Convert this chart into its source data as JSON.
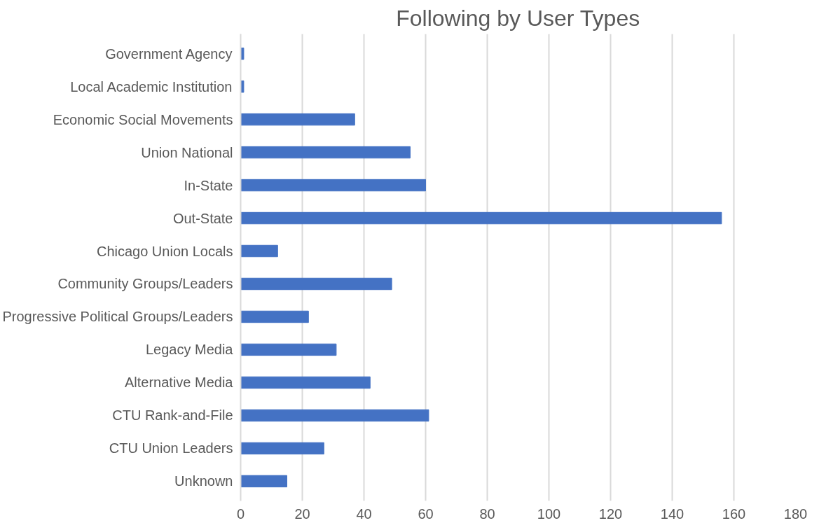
{
  "chart_data": {
    "type": "bar",
    "orientation": "horizontal",
    "title": "Following by User Types",
    "categories": [
      "Government Agency",
      "Local Academic Institution",
      "Economic Social Movements",
      "Union National",
      "In-State",
      "Out-State",
      "Chicago Union Locals",
      "Community Groups/Leaders",
      "Progressive Political Groups/Leaders",
      "Legacy Media",
      "Alternative Media",
      "CTU Rank-and-File",
      "CTU Union Leaders",
      "Unknown"
    ],
    "values": [
      1,
      1,
      37,
      55,
      60,
      156,
      12,
      49,
      22,
      31,
      42,
      61,
      27,
      15
    ],
    "color": "#4472c4",
    "xlim": [
      0,
      180
    ],
    "xticks": [
      0,
      20,
      40,
      60,
      80,
      100,
      120,
      140,
      160,
      180
    ],
    "grid": "x"
  }
}
